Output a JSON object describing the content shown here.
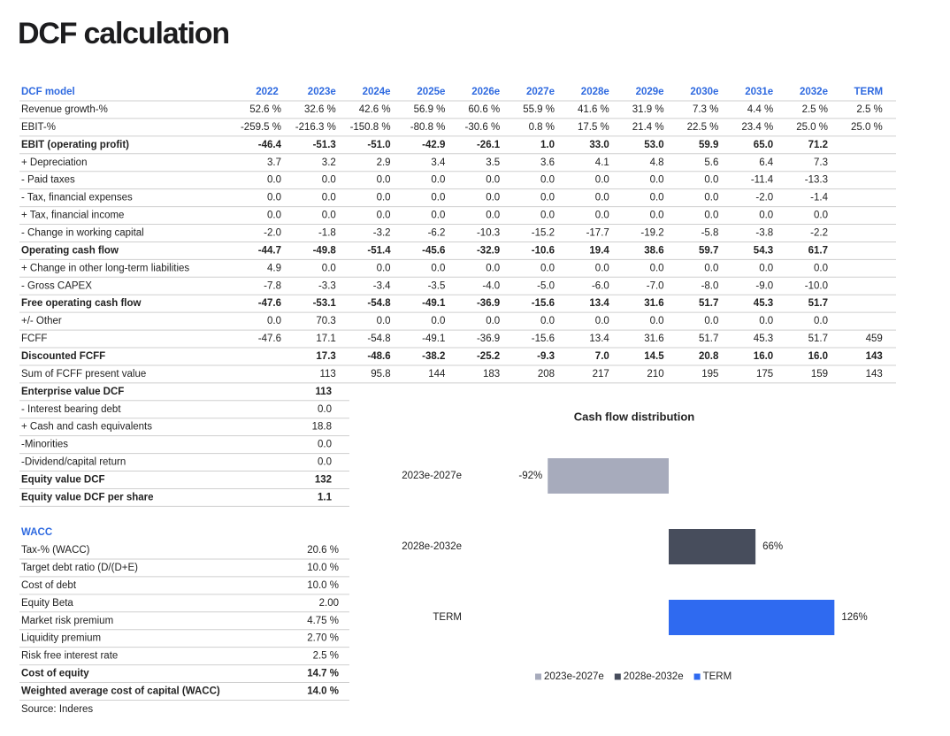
{
  "title": "DCF calculation",
  "dcf_table": {
    "header": [
      "DCF model",
      "2022",
      "2023e",
      "2024e",
      "2025e",
      "2026e",
      "2027e",
      "2028e",
      "2029e",
      "2030e",
      "2031e",
      "2032e",
      "TERM"
    ],
    "rows": [
      {
        "label": "Revenue growth-%",
        "bold": false,
        "cells": [
          "52.6 %",
          "32.6 %",
          "42.6 %",
          "56.9 %",
          "60.6 %",
          "55.9 %",
          "41.6 %",
          "31.9 %",
          "7.3 %",
          "4.4 %",
          "2.5 %",
          "2.5 %"
        ]
      },
      {
        "label": "EBIT-%",
        "bold": false,
        "cells": [
          "-259.5 %",
          "-216.3 %",
          "-150.8 %",
          "-80.8 %",
          "-30.6 %",
          "0.8 %",
          "17.5 %",
          "21.4 %",
          "22.5 %",
          "23.4 %",
          "25.0 %",
          "25.0 %"
        ]
      },
      {
        "label": "EBIT (operating profit)",
        "bold": true,
        "cells": [
          "-46.4",
          "-51.3",
          "-51.0",
          "-42.9",
          "-26.1",
          "1.0",
          "33.0",
          "53.0",
          "59.9",
          "65.0",
          "71.2",
          null
        ]
      },
      {
        "label": "+ Depreciation",
        "bold": false,
        "cells": [
          "3.7",
          "3.2",
          "2.9",
          "3.4",
          "3.5",
          "3.6",
          "4.1",
          "4.8",
          "5.6",
          "6.4",
          "7.3",
          null
        ]
      },
      {
        "label": "- Paid taxes",
        "bold": false,
        "cells": [
          "0.0",
          "0.0",
          "0.0",
          "0.0",
          "0.0",
          "0.0",
          "0.0",
          "0.0",
          "0.0",
          "-11.4",
          "-13.3",
          null
        ]
      },
      {
        "label": "- Tax, financial expenses",
        "bold": false,
        "cells": [
          "0.0",
          "0.0",
          "0.0",
          "0.0",
          "0.0",
          "0.0",
          "0.0",
          "0.0",
          "0.0",
          "-2.0",
          "-1.4",
          null
        ]
      },
      {
        "label": "+ Tax, financial income",
        "bold": false,
        "cells": [
          "0.0",
          "0.0",
          "0.0",
          "0.0",
          "0.0",
          "0.0",
          "0.0",
          "0.0",
          "0.0",
          "0.0",
          "0.0",
          null
        ]
      },
      {
        "label": "- Change in working capital",
        "bold": false,
        "cells": [
          "-2.0",
          "-1.8",
          "-3.2",
          "-6.2",
          "-10.3",
          "-15.2",
          "-17.7",
          "-19.2",
          "-5.8",
          "-3.8",
          "-2.2",
          null
        ]
      },
      {
        "label": "Operating cash flow",
        "bold": true,
        "cells": [
          "-44.7",
          "-49.8",
          "-51.4",
          "-45.6",
          "-32.9",
          "-10.6",
          "19.4",
          "38.6",
          "59.7",
          "54.3",
          "61.7",
          null
        ]
      },
      {
        "label": "+ Change in other long-term liabilities",
        "bold": false,
        "cells": [
          "4.9",
          "0.0",
          "0.0",
          "0.0",
          "0.0",
          "0.0",
          "0.0",
          "0.0",
          "0.0",
          "0.0",
          "0.0",
          null
        ]
      },
      {
        "label": "- Gross CAPEX",
        "bold": false,
        "cells": [
          "-7.8",
          "-3.3",
          "-3.4",
          "-3.5",
          "-4.0",
          "-5.0",
          "-6.0",
          "-7.0",
          "-8.0",
          "-9.0",
          "-10.0",
          null
        ]
      },
      {
        "label": "Free operating cash flow",
        "bold": true,
        "cells": [
          "-47.6",
          "-53.1",
          "-54.8",
          "-49.1",
          "-36.9",
          "-15.6",
          "13.4",
          "31.6",
          "51.7",
          "45.3",
          "51.7",
          null
        ]
      },
      {
        "label": "+/- Other",
        "bold": false,
        "cells": [
          "0.0",
          "70.3",
          "0.0",
          "0.0",
          "0.0",
          "0.0",
          "0.0",
          "0.0",
          "0.0",
          "0.0",
          "0.0",
          null
        ]
      },
      {
        "label": "FCFF",
        "bold": false,
        "cells": [
          "-47.6",
          "17.1",
          "-54.8",
          "-49.1",
          "-36.9",
          "-15.6",
          "13.4",
          "31.6",
          "51.7",
          "45.3",
          "51.7",
          "459"
        ]
      },
      {
        "label": "Discounted FCFF",
        "bold": true,
        "cells": [
          null,
          "17.3",
          "-48.6",
          "-38.2",
          "-25.2",
          "-9.3",
          "7.0",
          "14.5",
          "20.8",
          "16.0",
          "16.0",
          "143"
        ]
      },
      {
        "label": "Sum of FCFF present value",
        "bold": false,
        "cells": [
          null,
          "113",
          "95.8",
          "144",
          "183",
          "208",
          "217",
          "210",
          "195",
          "175",
          "159",
          "143"
        ]
      }
    ]
  },
  "valuation": {
    "rows": [
      {
        "label": "Enterprise value DCF",
        "bold": true,
        "value": "113"
      },
      {
        "label": "- Interest bearing debt",
        "bold": false,
        "value": "0.0"
      },
      {
        "label": "+ Cash and cash equivalents",
        "bold": false,
        "value": "18.8"
      },
      {
        "label": "-Minorities",
        "bold": false,
        "value": "0.0"
      },
      {
        "label": "-Dividend/capital return",
        "bold": false,
        "value": "0.0"
      },
      {
        "label": "Equity value DCF",
        "bold": true,
        "value": "132"
      },
      {
        "label": "Equity value DCF per share",
        "bold": true,
        "value": "1.1"
      }
    ]
  },
  "wacc": {
    "title": "WACC",
    "rows": [
      {
        "label": "Tax-% (WACC)",
        "bold": false,
        "value": "20.6 %"
      },
      {
        "label": "Target debt ratio (D/(D+E)",
        "bold": false,
        "value": "10.0 %"
      },
      {
        "label": "Cost of debt",
        "bold": false,
        "value": "10.0 %"
      },
      {
        "label": "Equity Beta",
        "bold": false,
        "value": "2.00"
      },
      {
        "label": "Market risk premium",
        "bold": false,
        "value": "4.75 %"
      },
      {
        "label": "Liquidity premium",
        "bold": false,
        "value": "2.70 %"
      },
      {
        "label": "Risk free interest rate",
        "bold": false,
        "value": "2.5 %"
      },
      {
        "label": "Cost of equity",
        "bold": true,
        "value": "14.7 %"
      },
      {
        "label": "Weighted average cost of capital (WACC)",
        "bold": true,
        "value": "14.0 %"
      }
    ]
  },
  "source": "Source: Inderes",
  "chart_data": {
    "type": "bar",
    "horizontal": true,
    "title": "Cash flow distribution",
    "categories": [
      "2023e-2027e",
      "2028e-2032e",
      "TERM"
    ],
    "values": [
      -92,
      66,
      126
    ],
    "value_labels": [
      "-92%",
      "66%",
      "126%"
    ],
    "colors": [
      "#a7abbc",
      "#474d5c",
      "#2f6af0"
    ],
    "xlim": [
      -150,
      150
    ],
    "legend": true
  }
}
